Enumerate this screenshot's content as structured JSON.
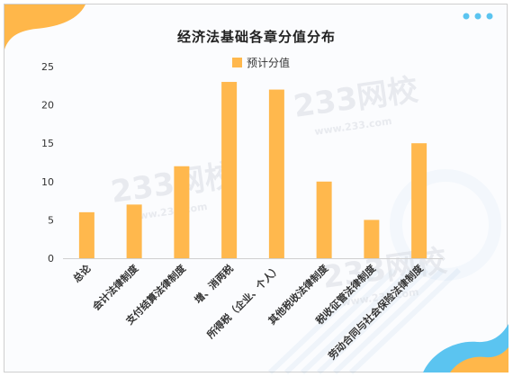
{
  "chart_data": {
    "type": "bar",
    "title": "经济法基础各章分值分布",
    "categories": [
      "总论",
      "会计法律制度",
      "支付结算法律制度",
      "增、消两税",
      "所得税（企业、个人）",
      "其他税收法律制度",
      "税收征管法律制度",
      "劳动合同与社会保险法律制度"
    ],
    "series": [
      {
        "name": "预计分值",
        "values": [
          6,
          7,
          12,
          23,
          22,
          10,
          5,
          15
        ]
      }
    ],
    "ylim": [
      0,
      25
    ],
    "yticks": [
      0,
      5,
      10,
      15,
      20,
      25
    ],
    "grid": false,
    "legend": "top-center",
    "colors": {
      "bar": "#FFB84D",
      "axis_text": "#333333",
      "decor_orange": "#FFB74A",
      "decor_blue": "#5BC4F0"
    }
  },
  "watermark": {
    "text": "233网校",
    "sub": "www.233.com"
  }
}
